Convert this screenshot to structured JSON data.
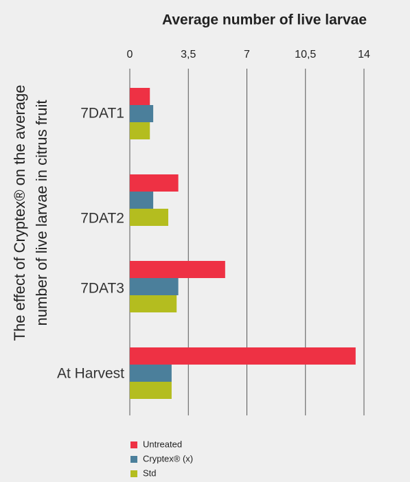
{
  "chart_data": {
    "type": "bar",
    "orientation": "horizontal",
    "title": "Average number of live larvae",
    "y_label_lines": [
      "The effect of Cryptex® on the average",
      "number of live larvae in citrus fruit"
    ],
    "categories": [
      "7DAT1",
      "7DAT2",
      "7DAT3",
      "At Harvest"
    ],
    "series": [
      {
        "name": "Untreated",
        "color": "#ee3144",
        "values": [
          1.2,
          2.9,
          5.7,
          13.5
        ]
      },
      {
        "name": "Cryptex® (x)",
        "color": "#4b7f9b",
        "values": [
          1.4,
          1.4,
          2.9,
          2.5
        ]
      },
      {
        "name": "Std",
        "color": "#b4bd1f",
        "values": [
          1.2,
          2.3,
          2.8,
          2.5
        ]
      }
    ],
    "xlim": [
      0,
      14
    ],
    "xticks": [
      0,
      {
        "value": 3.5,
        "label": "3,5"
      },
      7,
      {
        "value": 10.5,
        "label": "10,5"
      },
      14
    ],
    "grid": true
  }
}
